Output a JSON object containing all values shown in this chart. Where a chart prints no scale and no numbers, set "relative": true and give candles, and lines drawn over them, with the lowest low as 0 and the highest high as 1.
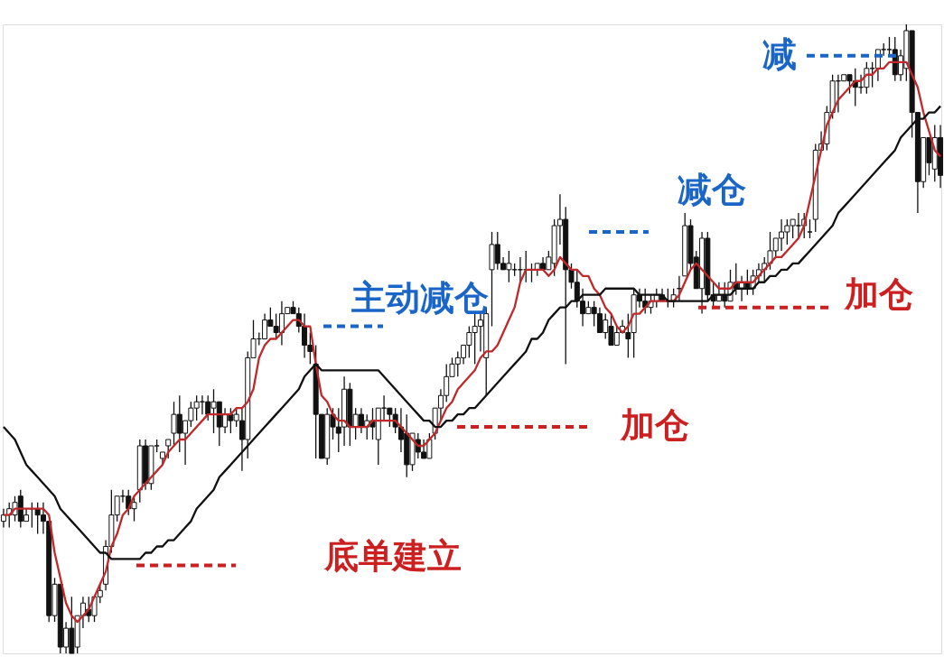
{
  "chart_data": {
    "type": "candlestick",
    "relative": true,
    "color": "#111111",
    "tick_labels": false,
    "categories": [
      null,
      null,
      null,
      null,
      null,
      null,
      null,
      null,
      null,
      null,
      null,
      null,
      null,
      null,
      null,
      null,
      null,
      null,
      null,
      null,
      null,
      null,
      null,
      null,
      null,
      null,
      null,
      null,
      null,
      null,
      null,
      null,
      null,
      null,
      null,
      null,
      null,
      null,
      null,
      null,
      null,
      null,
      null,
      null,
      null,
      null,
      null,
      null,
      null,
      null,
      null,
      null,
      null,
      null,
      null,
      null,
      null,
      null,
      null,
      null,
      null,
      null,
      null,
      null,
      null,
      null,
      null,
      null,
      null,
      null,
      null,
      null,
      null,
      null,
      null,
      null,
      null,
      null,
      null,
      null,
      null,
      null,
      null,
      null,
      null,
      null,
      null,
      null,
      null,
      null,
      null,
      null,
      null,
      null,
      null,
      null,
      null,
      null,
      null,
      null,
      null,
      null,
      null,
      null,
      null,
      null,
      null,
      null,
      null,
      null,
      null,
      null,
      null,
      null,
      null,
      null,
      null,
      null,
      null,
      null,
      null,
      null,
      null,
      null,
      null,
      null,
      null,
      null,
      null,
      null,
      null,
      null,
      null,
      null,
      null,
      null,
      null,
      null,
      null,
      null,
      null,
      null,
      null,
      null,
      null,
      null,
      null,
      null,
      null,
      null,
      null,
      null,
      null,
      null,
      null,
      null,
      null,
      null,
      null,
      null,
      null,
      null,
      null,
      null,
      null,
      null
    ],
    "ohlc": [
      [
        0.21,
        0.23,
        0.2,
        0.22
      ],
      [
        0.22,
        0.24,
        0.2,
        0.23
      ],
      [
        0.22,
        0.25,
        0.21,
        0.24
      ],
      [
        0.25,
        0.26,
        0.2,
        0.21
      ],
      [
        0.21,
        0.23,
        0.21,
        0.22
      ],
      [
        0.23,
        0.24,
        0.2,
        0.23
      ],
      [
        0.23,
        0.24,
        0.19,
        0.22
      ],
      [
        0.22,
        0.24,
        0.19,
        0.21
      ],
      [
        0.21,
        0.21,
        0.05,
        0.06
      ],
      [
        0.06,
        0.12,
        0.05,
        0.11
      ],
      [
        0.11,
        0.11,
        0,
        0.01
      ],
      [
        0.01,
        0.05,
        0,
        0.04
      ],
      [
        0.04,
        0.09,
        0,
        0
      ],
      [
        0.01,
        0.06,
        0,
        0.06
      ],
      [
        0.06,
        0.09,
        0.04,
        0.08
      ],
      [
        0.07,
        0.09,
        0.05,
        0.06
      ],
      [
        0.06,
        0.09,
        0.05,
        0.09
      ],
      [
        0.09,
        0.11,
        0.08,
        0.1
      ],
      [
        0.11,
        0.18,
        0.1,
        0.17
      ],
      [
        0.17,
        0.26,
        0.16,
        0.22
      ],
      [
        0.22,
        0.25,
        0.21,
        0.25
      ],
      [
        0.25,
        0.26,
        0.24,
        0.25
      ],
      [
        0.25,
        0.26,
        0.22,
        0.23
      ],
      [
        0.23,
        0.25,
        0.21,
        0.24
      ],
      [
        0.26,
        0.34,
        0.24,
        0.33
      ],
      [
        0.33,
        0.34,
        0.26,
        0.27
      ],
      [
        0.27,
        0.33,
        0.26,
        0.33
      ],
      [
        0.33,
        0.34,
        0.32,
        0.33
      ],
      [
        0.31,
        0.32,
        0.3,
        0.32
      ],
      [
        0.33,
        0.34,
        0.31,
        0.34
      ],
      [
        0.35,
        0.4,
        0.33,
        0.38
      ],
      [
        0.38,
        0.41,
        0.32,
        0.35
      ],
      [
        0.35,
        0.37,
        0.3,
        0.37
      ],
      [
        0.37,
        0.4,
        0.36,
        0.39
      ],
      [
        0.39,
        0.41,
        0.37,
        0.4
      ],
      [
        0.4,
        0.41,
        0.38,
        0.4
      ],
      [
        0.4,
        0.41,
        0.37,
        0.38
      ],
      [
        0.39,
        0.42,
        0.35,
        0.4
      ],
      [
        0.4,
        0.4,
        0.33,
        0.36
      ],
      [
        0.36,
        0.39,
        0.35,
        0.38
      ],
      [
        0.38,
        0.39,
        0.35,
        0.37
      ],
      [
        0.37,
        0.39,
        0.36,
        0.38
      ],
      [
        0.37,
        0.39,
        0.29,
        0.34
      ],
      [
        0.34,
        0.48,
        0.31,
        0.47
      ],
      [
        0.47,
        0.53,
        0.47,
        0.5
      ],
      [
        0.5,
        0.51,
        0.49,
        0.5
      ],
      [
        0.5,
        0.54,
        0.5,
        0.53
      ],
      [
        0.53,
        0.55,
        0.52,
        0.52
      ],
      [
        0.52,
        0.54,
        0.5,
        0.51
      ],
      [
        0.51,
        0.56,
        0.49,
        0.54
      ],
      [
        0.54,
        0.55,
        0.54,
        0.55
      ],
      [
        0.55,
        0.56,
        0.54,
        0.54
      ],
      [
        0.54,
        0.55,
        0.51,
        0.52
      ],
      [
        0.52,
        0.54,
        0.47,
        0.49
      ],
      [
        0.49,
        0.51,
        0.46,
        0.48
      ],
      [
        0.46,
        0.49,
        0.31,
        0.38
      ],
      [
        0.38,
        0.38,
        0.31,
        0.31
      ],
      [
        0.31,
        0.39,
        0.3,
        0.38
      ],
      [
        0.38,
        0.39,
        0.34,
        0.36
      ],
      [
        0.36,
        0.39,
        0.32,
        0.35
      ],
      [
        0.36,
        0.44,
        0.33,
        0.42
      ],
      [
        0.42,
        0.43,
        0.33,
        0.36
      ],
      [
        0.36,
        0.39,
        0.34,
        0.38
      ],
      [
        0.38,
        0.39,
        0.35,
        0.36
      ],
      [
        0.36,
        0.38,
        0.34,
        0.37
      ],
      [
        0.37,
        0.39,
        0.34,
        0.36
      ],
      [
        0.34,
        0.39,
        0.3,
        0.39
      ],
      [
        0.39,
        0.41,
        0.37,
        0.39
      ],
      [
        0.39,
        0.39,
        0.36,
        0.38
      ],
      [
        0.38,
        0.39,
        0.35,
        0.36
      ],
      [
        0.36,
        0.39,
        0.32,
        0.34
      ],
      [
        0.35,
        0.38,
        0.28,
        0.3
      ],
      [
        0.3,
        0.35,
        0.29,
        0.35
      ],
      [
        0.34,
        0.35,
        0.31,
        0.32
      ],
      [
        0.32,
        0.34,
        0.31,
        0.31
      ],
      [
        0.31,
        0.35,
        0.31,
        0.34
      ],
      [
        0.35,
        0.39,
        0.34,
        0.39
      ],
      [
        0.39,
        0.42,
        0.37,
        0.41
      ],
      [
        0.41,
        0.46,
        0.4,
        0.44
      ],
      [
        0.44,
        0.47,
        0.44,
        0.46
      ],
      [
        0.46,
        0.48,
        0.44,
        0.47
      ],
      [
        0.47,
        0.49,
        0.46,
        0.49
      ],
      [
        0.49,
        0.52,
        0.47,
        0.51
      ],
      [
        0.51,
        0.54,
        0.46,
        0.52
      ],
      [
        0.52,
        0.54,
        0.48,
        0.53
      ],
      [
        0.47,
        0.55,
        0.41,
        0.54
      ],
      [
        0.61,
        0.67,
        0.52,
        0.65
      ],
      [
        0.65,
        0.67,
        0.61,
        0.62
      ],
      [
        0.62,
        0.63,
        0.61,
        0.61
      ],
      [
        0.61,
        0.64,
        0.59,
        0.62
      ],
      [
        0.61,
        0.62,
        0.6,
        0.61
      ],
      [
        0.61,
        0.63,
        0.59,
        0.61
      ],
      [
        0.61,
        0.64,
        0.59,
        0.61
      ],
      [
        0.61,
        0.62,
        0.59,
        0.61
      ],
      [
        0.61,
        0.62,
        0.6,
        0.62
      ],
      [
        0.62,
        0.63,
        0.61,
        0.61
      ],
      [
        0.61,
        0.64,
        0.61,
        0.63
      ],
      [
        0.62,
        0.69,
        0.6,
        0.68
      ],
      [
        0.68,
        0.73,
        0.65,
        0.69
      ],
      [
        0.69,
        0.71,
        0.46,
        0.61
      ],
      [
        0.61,
        0.62,
        0.58,
        0.59
      ],
      [
        0.59,
        0.61,
        0.55,
        0.56
      ],
      [
        0.56,
        0.58,
        0.52,
        0.54
      ],
      [
        0.54,
        0.56,
        0.54,
        0.55
      ],
      [
        0.55,
        0.56,
        0.52,
        0.54
      ],
      [
        0.54,
        0.55,
        0.51,
        0.51
      ],
      [
        0.51,
        0.54,
        0.5,
        0.53
      ],
      [
        0.52,
        0.54,
        0.49,
        0.49
      ],
      [
        0.49,
        0.52,
        0.49,
        0.51
      ],
      [
        0.51,
        0.53,
        0.51,
        0.52
      ],
      [
        0.51,
        0.54,
        0.47,
        0.5
      ],
      [
        0.51,
        0.58,
        0.47,
        0.57
      ],
      [
        0.57,
        0.58,
        0.55,
        0.56
      ],
      [
        0.56,
        0.58,
        0.54,
        0.55
      ],
      [
        0.55,
        0.57,
        0.54,
        0.56
      ],
      [
        0.56,
        0.58,
        0.55,
        0.57
      ],
      [
        0.57,
        0.58,
        0.56,
        0.56
      ],
      [
        0.56,
        0.58,
        0.55,
        0.56
      ],
      [
        0.56,
        0.58,
        0.55,
        0.57
      ],
      [
        0.58,
        0.6,
        0.56,
        0.58
      ],
      [
        0.6,
        0.7,
        0.6,
        0.68
      ],
      [
        0.68,
        0.69,
        0.61,
        0.62
      ],
      [
        0.63,
        0.64,
        0.58,
        0.58
      ],
      [
        0.58,
        0.67,
        0.54,
        0.66
      ],
      [
        0.66,
        0.67,
        0.56,
        0.57
      ],
      [
        0.57,
        0.59,
        0.55,
        0.56
      ],
      [
        0.56,
        0.59,
        0.56,
        0.57
      ],
      [
        0.57,
        0.59,
        0.55,
        0.56
      ],
      [
        0.56,
        0.61,
        0.56,
        0.59
      ],
      [
        0.59,
        0.62,
        0.57,
        0.58
      ],
      [
        0.58,
        0.6,
        0.56,
        0.59
      ],
      [
        0.59,
        0.61,
        0.57,
        0.58
      ],
      [
        0.58,
        0.61,
        0.57,
        0.6
      ],
      [
        0.6,
        0.62,
        0.59,
        0.61
      ],
      [
        0.61,
        0.63,
        0.59,
        0.62
      ],
      [
        0.62,
        0.67,
        0.61,
        0.64
      ],
      [
        0.64,
        0.66,
        0.63,
        0.66
      ],
      [
        0.66,
        0.69,
        0.64,
        0.67
      ],
      [
        0.67,
        0.69,
        0.65,
        0.68
      ],
      [
        0.68,
        0.69,
        0.66,
        0.69
      ],
      [
        0.68,
        0.7,
        0.66,
        0.68
      ],
      [
        0.68,
        0.7,
        0.66,
        0.69
      ],
      [
        0.67,
        0.69,
        0.66,
        0.67
      ],
      [
        0.69,
        0.81,
        0.67,
        0.8
      ],
      [
        0.8,
        0.83,
        0.8,
        0.81
      ],
      [
        0.81,
        0.87,
        0.8,
        0.86
      ],
      [
        0.86,
        0.92,
        0.85,
        0.91
      ],
      [
        0.91,
        0.92,
        0.86,
        0.91
      ],
      [
        0.91,
        0.92,
        0.91,
        0.92
      ],
      [
        0.92,
        0.92,
        0.89,
        0.91
      ],
      [
        0.91,
        0.93,
        0.87,
        0.9
      ],
      [
        0.9,
        0.92,
        0.89,
        0.9
      ],
      [
        0.9,
        0.94,
        0.89,
        0.93
      ],
      [
        0.93,
        0.94,
        0.9,
        0.93
      ],
      [
        0.93,
        0.96,
        0.91,
        0.96
      ],
      [
        0.96,
        0.97,
        0.95,
        0.96
      ],
      [
        0.96,
        0.98,
        0.95,
        0.96
      ],
      [
        0.96,
        0.98,
        0.91,
        0.92
      ],
      [
        0.92,
        0.96,
        0.91,
        0.95
      ],
      [
        0.93,
        1.0,
        0.91,
        0.99
      ],
      [
        0.99,
        0.99,
        0.82,
        0.86
      ],
      [
        0.86,
        0.86,
        0.7,
        0.75
      ],
      [
        0.75,
        0.82,
        0.74,
        0.82
      ],
      [
        0.82,
        0.82,
        0.76,
        0.78
      ],
      [
        0.77,
        0.84,
        0.75,
        0.82
      ],
      [
        0.82,
        0.84,
        0.74,
        0.76
      ]
    ],
    "series": [
      {
        "type": "line",
        "color": "#c0282a",
        "values": [
          0.22,
          0.22,
          0.23,
          0.23,
          0.23,
          0.23,
          0.23,
          0.23,
          0.22,
          0.16,
          0.12,
          0.08,
          0.06,
          0.05,
          0.06,
          0.07,
          0.09,
          0.11,
          0.13,
          0.17,
          0.19,
          0.22,
          0.23,
          0.25,
          0.26,
          0.27,
          0.28,
          0.29,
          0.3,
          0.32,
          0.33,
          0.34,
          0.34,
          0.35,
          0.36,
          0.37,
          0.38,
          0.38,
          0.38,
          0.38,
          0.38,
          0.39,
          0.39,
          0.4,
          0.42,
          0.47,
          0.49,
          0.5,
          0.5,
          0.51,
          0.52,
          0.53,
          0.53,
          0.52,
          0.52,
          0.46,
          0.41,
          0.4,
          0.38,
          0.37,
          0.37,
          0.36,
          0.36,
          0.36,
          0.36,
          0.37,
          0.37,
          0.37,
          0.37,
          0.37,
          0.36,
          0.35,
          0.34,
          0.33,
          0.33,
          0.34,
          0.35,
          0.37,
          0.39,
          0.4,
          0.42,
          0.43,
          0.44,
          0.45,
          0.47,
          0.48,
          0.48,
          0.49,
          0.51,
          0.53,
          0.55,
          0.59,
          0.61,
          0.61,
          0.61,
          0.61,
          0.6,
          0.61,
          0.63,
          0.62,
          0.61,
          0.61,
          0.6,
          0.6,
          0.58,
          0.57,
          0.55,
          0.54,
          0.52,
          0.51,
          0.52,
          0.54,
          0.54,
          0.55,
          0.56,
          0.56,
          0.56,
          0.56,
          0.56,
          0.57,
          0.59,
          0.61,
          0.62,
          0.61,
          0.6,
          0.59,
          0.58,
          0.58,
          0.58,
          0.59,
          0.59,
          0.59,
          0.59,
          0.6,
          0.61,
          0.62,
          0.63,
          0.63,
          0.64,
          0.65,
          0.66,
          0.68,
          0.72,
          0.76,
          0.8,
          0.84,
          0.86,
          0.88,
          0.89,
          0.9,
          0.91,
          0.91,
          0.92,
          0.92,
          0.93,
          0.93,
          0.94,
          0.94,
          0.94,
          0.94,
          0.92,
          0.9,
          0.86,
          0.83,
          0.8,
          0.79
        ]
      },
      {
        "type": "line",
        "color": "#111111",
        "values": [
          0.36,
          0.35,
          0.34,
          0.32,
          0.3,
          0.29,
          0.28,
          0.27,
          0.26,
          0.25,
          0.23,
          0.22,
          0.21,
          0.2,
          0.19,
          0.18,
          0.17,
          0.16,
          0.16,
          0.15,
          0.15,
          0.15,
          0.15,
          0.15,
          0.15,
          0.16,
          0.16,
          0.17,
          0.17,
          0.18,
          0.18,
          0.19,
          0.2,
          0.21,
          0.23,
          0.24,
          0.25,
          0.26,
          0.28,
          0.29,
          0.3,
          0.31,
          0.32,
          0.33,
          0.34,
          0.35,
          0.36,
          0.37,
          0.38,
          0.39,
          0.4,
          0.41,
          0.42,
          0.44,
          0.45,
          0.46,
          0.45,
          0.45,
          0.45,
          0.45,
          0.45,
          0.45,
          0.45,
          0.45,
          0.45,
          0.45,
          0.45,
          0.44,
          0.43,
          0.42,
          0.41,
          0.4,
          0.39,
          0.38,
          0.37,
          0.37,
          0.36,
          0.36,
          0.37,
          0.37,
          0.38,
          0.38,
          0.39,
          0.39,
          0.4,
          0.41,
          0.42,
          0.43,
          0.44,
          0.45,
          0.46,
          0.47,
          0.48,
          0.5,
          0.5,
          0.51,
          0.53,
          0.54,
          0.55,
          0.55,
          0.56,
          0.56,
          0.57,
          0.57,
          0.57,
          0.57,
          0.58,
          0.58,
          0.58,
          0.58,
          0.58,
          0.58,
          0.57,
          0.57,
          0.57,
          0.57,
          0.57,
          0.56,
          0.56,
          0.56,
          0.56,
          0.56,
          0.56,
          0.56,
          0.56,
          0.57,
          0.57,
          0.57,
          0.57,
          0.58,
          0.58,
          0.58,
          0.58,
          0.59,
          0.59,
          0.6,
          0.6,
          0.61,
          0.61,
          0.62,
          0.62,
          0.63,
          0.64,
          0.65,
          0.66,
          0.67,
          0.68,
          0.7,
          0.71,
          0.72,
          0.73,
          0.74,
          0.75,
          0.76,
          0.77,
          0.78,
          0.79,
          0.8,
          0.82,
          0.83,
          0.84,
          0.85,
          0.85,
          0.86,
          0.86,
          0.87
        ]
      }
    ],
    "ref_lines": [
      {
        "axis": "y",
        "value": 0.95,
        "label": "减",
        "color": "#1a66c8",
        "line_style": "dashed"
      },
      {
        "axis": "y",
        "value": 0.67,
        "label": "减仓",
        "color": "#1a66c8",
        "line_style": "dashed"
      },
      {
        "axis": "y",
        "value": 0.52,
        "label": "主动减仓",
        "color": "#1a66c8",
        "line_style": "dashed"
      },
      {
        "axis": "y",
        "value": 0.55,
        "label": "加仓",
        "color": "#cc1f1f",
        "line_style": "dashed"
      },
      {
        "axis": "y",
        "value": 0.36,
        "label": "加仓",
        "color": "#cc1f1f",
        "line_style": "dashed"
      },
      {
        "axis": "y",
        "value": 0.14,
        "label": "底单建立",
        "color": "#cc1f1f",
        "line_style": "dashed"
      }
    ]
  }
}
